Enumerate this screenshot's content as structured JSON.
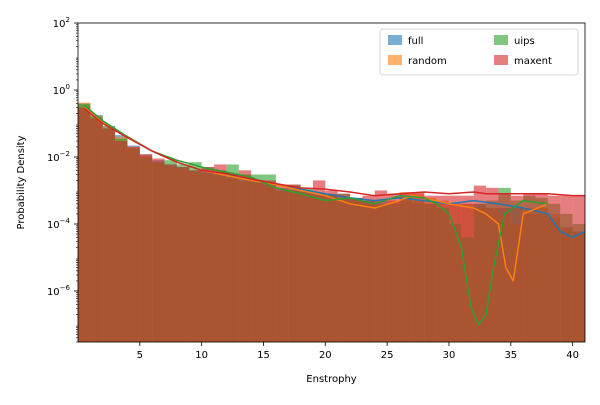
{
  "chart_data": {
    "type": "histogram",
    "xlabel": "Enstrophy",
    "ylabel": "Probability Density",
    "yscale": "log",
    "xlim": [
      0,
      41
    ],
    "ylim": [
      3e-08,
      100
    ],
    "x_ticks": [
      5,
      10,
      15,
      20,
      25,
      30,
      35,
      40
    ],
    "x_tick_labels": [
      "5",
      "10",
      "15",
      "20",
      "25",
      "30",
      "35",
      "40"
    ],
    "y_ticks": [
      {
        "value": 1e-06,
        "base": "10",
        "exp": "−6"
      },
      {
        "value": 0.0001,
        "base": "10",
        "exp": "−4"
      },
      {
        "value": 0.01,
        "base": "10",
        "exp": "−2"
      },
      {
        "value": 1,
        "base": "10",
        "exp": "0"
      },
      {
        "value": 100,
        "base": "10",
        "exp": "2"
      }
    ],
    "grid": false,
    "legend": {
      "placement": "top-right",
      "columns": 2
    },
    "series": [
      {
        "name": "full",
        "color": "#1f77b4",
        "bar_opacity": 0.6,
        "x": [
          0.5,
          1.5,
          2.5,
          3.5,
          4.5,
          5.5,
          6.5,
          7.5,
          8.5,
          9.5,
          10.5,
          11.5,
          12.5,
          13.5,
          14.5,
          15.5,
          16.5,
          17.5,
          18.5,
          19.5,
          20.5,
          21.5,
          22.5,
          23.5,
          24.5,
          25.5,
          26.5,
          27.5,
          28.5,
          29.5,
          30.5,
          31.5,
          32.5,
          33.5,
          34.5,
          35.5,
          36.5,
          37.5,
          38.5,
          39.5,
          40.5
        ],
        "values": [
          0.4,
          0.18,
          0.085,
          0.045,
          0.022,
          0.012,
          0.008,
          0.006,
          0.005,
          0.004,
          0.0035,
          0.003,
          0.0025,
          0.002,
          0.0018,
          0.0015,
          0.0012,
          0.001,
          0.0009,
          0.0008,
          0.0007,
          0.0006,
          0.0006,
          0.0005,
          0.0005,
          0.0005,
          0.0005,
          0.0004,
          0.0004,
          0.0004,
          0.0004,
          0.0004,
          0.0004,
          0.0003,
          0.0003,
          0.0003,
          0.0002,
          0.0002,
          0.00015,
          8e-05,
          6e-05
        ],
        "kde_x": [
          0.5,
          2,
          4,
          6,
          8,
          10,
          12,
          14,
          16,
          18,
          20,
          22,
          24,
          26,
          28,
          30,
          32,
          34,
          36,
          38,
          39,
          40,
          41
        ],
        "kde_y": [
          0.35,
          0.12,
          0.04,
          0.015,
          0.007,
          0.004,
          0.003,
          0.0022,
          0.0016,
          0.0011,
          0.0008,
          0.0006,
          0.0005,
          0.0006,
          0.0005,
          0.0004,
          0.0005,
          0.0004,
          0.0003,
          0.0002,
          6e-05,
          4e-05,
          6e-05
        ]
      },
      {
        "name": "random",
        "color": "#ff7f0e",
        "bar_opacity": 0.6,
        "x": [
          0.5,
          1.5,
          2.5,
          3.5,
          4.5,
          5.5,
          6.5,
          7.5,
          8.5,
          9.5,
          10.5,
          11.5,
          12.5,
          13.5,
          14.5,
          15.5,
          16.5,
          17.5,
          18.5,
          19.5,
          20.5,
          21.5,
          22.5,
          23.5,
          24.5,
          25.5,
          26.5,
          27.5,
          28.5,
          29.5,
          30.5,
          31.5,
          32.5,
          33.5,
          34.5,
          35.5,
          36.5,
          37.5,
          38.5,
          39.5,
          40.5
        ],
        "values": [
          0.42,
          0.17,
          0.08,
          0.04,
          0.02,
          0.011,
          0.007,
          0.005,
          0.0045,
          0.0035,
          0.003,
          0.0025,
          0.0022,
          0.0018,
          0.0016,
          0.0013,
          0.001,
          0.0009,
          0.0008,
          0.0007,
          0.0006,
          0.0005,
          0.0005,
          0.0004,
          0.0004,
          0.0005,
          0.0009,
          0.0008,
          0.0006,
          0.0005,
          0.0004,
          0.0004,
          0.0003,
          0.0003,
          0.0002,
          0.0001,
          0.0003,
          0.0003,
          0.0002,
          8e-05,
          6e-05
        ],
        "kde_x": [
          0.5,
          2,
          4,
          6,
          8,
          10,
          12,
          14,
          16,
          18,
          20,
          22,
          24,
          26,
          27,
          28,
          30,
          32,
          33,
          34,
          34.6,
          35.2,
          36,
          38
        ],
        "kde_y": [
          0.33,
          0.11,
          0.04,
          0.015,
          0.007,
          0.004,
          0.0028,
          0.002,
          0.0015,
          0.001,
          0.0007,
          0.0004,
          0.0003,
          0.0005,
          0.0007,
          0.0006,
          0.0004,
          0.0003,
          0.0002,
          0.0001,
          5e-06,
          2e-06,
          0.0002,
          0.0004
        ]
      },
      {
        "name": "uips",
        "color": "#2ca02c",
        "bar_opacity": 0.6,
        "x": [
          0.5,
          1.5,
          2.5,
          3.5,
          4.5,
          5.5,
          6.5,
          7.5,
          8.5,
          9.5,
          10.5,
          11.5,
          12.5,
          13.5,
          14.5,
          15.5,
          16.5,
          17.5,
          18.5,
          19.5,
          20.5,
          21.5,
          22.5,
          23.5,
          24.5,
          25.5,
          26.5,
          27.5,
          28.5,
          29.5,
          30.5,
          31.5,
          32.5,
          33.5,
          34.5,
          35.5,
          36.5,
          37.5,
          38.5,
          39.5,
          40.5
        ],
        "values": [
          0.38,
          0.16,
          0.075,
          0.035,
          0.018,
          0.01,
          0.007,
          0.008,
          0.006,
          0.007,
          0.005,
          0.004,
          0.006,
          0.003,
          0.003,
          0.003,
          0.001,
          0.0015,
          0.0012,
          0.0008,
          0.0008,
          0.0008,
          0.0006,
          0.0005,
          0.0004,
          0.0004,
          0.0006,
          0.0005,
          0.0004,
          0.0003,
          0.0001,
          4e-05,
          0.0004,
          0.0005,
          0.0012,
          0.0005,
          0.0007,
          0.0006,
          0.0004,
          0.0002,
          0.0001
        ],
        "kde_x": [
          0.5,
          2,
          4,
          6,
          8,
          10,
          12,
          14,
          16,
          18,
          20,
          22,
          24,
          26,
          28,
          29,
          30,
          31,
          31.8,
          32.4,
          33,
          33.6,
          34.5,
          36,
          38
        ],
        "kde_y": [
          0.35,
          0.12,
          0.04,
          0.015,
          0.008,
          0.005,
          0.0035,
          0.0025,
          0.0012,
          0.0008,
          0.0005,
          0.0006,
          0.0004,
          0.0007,
          0.0006,
          0.0004,
          0.0002,
          2e-05,
          3e-07,
          1e-07,
          2e-07,
          5e-06,
          0.0002,
          0.0005,
          0.0004
        ]
      },
      {
        "name": "maxent",
        "color": "#d62728",
        "bar_opacity": 0.6,
        "x": [
          0.5,
          1.5,
          2.5,
          3.5,
          4.5,
          5.5,
          6.5,
          7.5,
          8.5,
          9.5,
          10.5,
          11.5,
          12.5,
          13.5,
          14.5,
          15.5,
          16.5,
          17.5,
          18.5,
          19.5,
          20.5,
          21.5,
          22.5,
          23.5,
          24.5,
          25.5,
          26.5,
          27.5,
          28.5,
          29.5,
          30.5,
          31.5,
          32.5,
          33.5,
          34.5,
          35.5,
          36.5,
          37.5,
          38.5,
          39.5,
          40.5
        ],
        "values": [
          0.3,
          0.14,
          0.07,
          0.03,
          0.02,
          0.012,
          0.009,
          0.006,
          0.005,
          0.004,
          0.005,
          0.006,
          0.003,
          0.004,
          0.002,
          0.002,
          0.0015,
          0.0015,
          0.001,
          0.002,
          0.001,
          0.0008,
          0.0006,
          0.0007,
          0.001,
          0.0008,
          0.0008,
          0.0009,
          0.0007,
          0.0007,
          0.0007,
          0.0007,
          0.0014,
          0.0012,
          0.0008,
          0.0007,
          0.0008,
          0.0008,
          0.0007,
          0.0007,
          0.0007
        ],
        "kde_x": [
          0.5,
          2,
          4,
          6,
          8,
          10,
          12,
          14,
          16,
          18,
          20,
          22,
          24,
          26,
          28,
          30,
          32,
          33,
          34,
          36,
          38,
          40,
          41
        ],
        "kde_y": [
          0.28,
          0.1,
          0.038,
          0.015,
          0.007,
          0.004,
          0.0032,
          0.0022,
          0.0016,
          0.0012,
          0.0011,
          0.0009,
          0.0007,
          0.0008,
          0.0009,
          0.0008,
          0.0009,
          0.0008,
          0.0008,
          0.0008,
          0.0008,
          0.0007,
          0.0007
        ]
      }
    ]
  }
}
